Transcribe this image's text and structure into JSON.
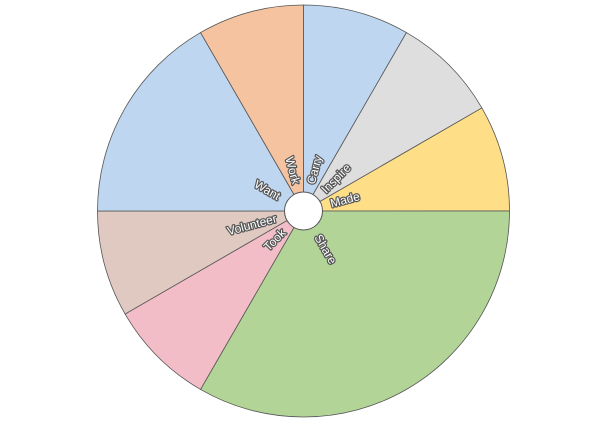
{
  "chart_data": {
    "type": "pie",
    "start_angle_deg": 90,
    "direction": "clockwise",
    "legend": "none",
    "hole": true,
    "labels": [
      "Carry",
      "Inspire",
      "Made",
      "Share",
      "Took",
      "Volunteer",
      "Want",
      "Work"
    ],
    "values": [
      8.33,
      8.33,
      8.33,
      33.33,
      8.33,
      8.33,
      16.67,
      8.33
    ],
    "colors": [
      "#bed6ef",
      "#dedede",
      "#fedf88",
      "#b2d597",
      "#f2bdc7",
      "#e0c9c0",
      "#bed6ef",
      "#f6c3a0"
    ]
  }
}
